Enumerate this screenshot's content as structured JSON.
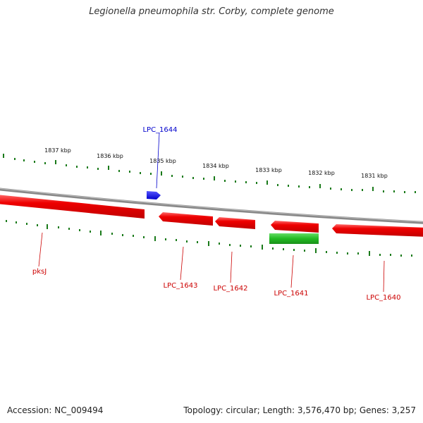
{
  "header": {
    "title": "Legionella pneumophila str. Corby, complete genome"
  },
  "footer": {
    "accession": "Accession: NC_009494",
    "summary": "Topology: circular; Length: 3,576,470 bp; Genes: 3,257"
  },
  "scale": {
    "ticks": [
      "1837 kbp",
      "1836 kbp",
      "1835 kbp",
      "1834 kbp",
      "1833 kbp",
      "1832 kbp",
      "1831 kbp"
    ]
  },
  "features": {
    "forward": [
      {
        "label": "LPC_1644",
        "color": "#0000ee"
      }
    ],
    "reverse": [
      {
        "label": "pksJ",
        "color": "#ee0000"
      },
      {
        "label": "LPC_1643",
        "color": "#ee0000"
      },
      {
        "label": "LPC_1642",
        "color": "#ee0000"
      },
      {
        "label": "LPC_1641",
        "color": "#ee0000"
      },
      {
        "label": "LPC_1640",
        "color": "#ee0000"
      }
    ],
    "other": [
      {
        "label": "",
        "color": "#22bb22"
      }
    ]
  },
  "colors": {
    "backbone": "#888888",
    "tick": "#1a7a1a",
    "gene_red": "#ee0000",
    "gene_blue": "#0000ee",
    "gene_green": "#22bb22"
  }
}
